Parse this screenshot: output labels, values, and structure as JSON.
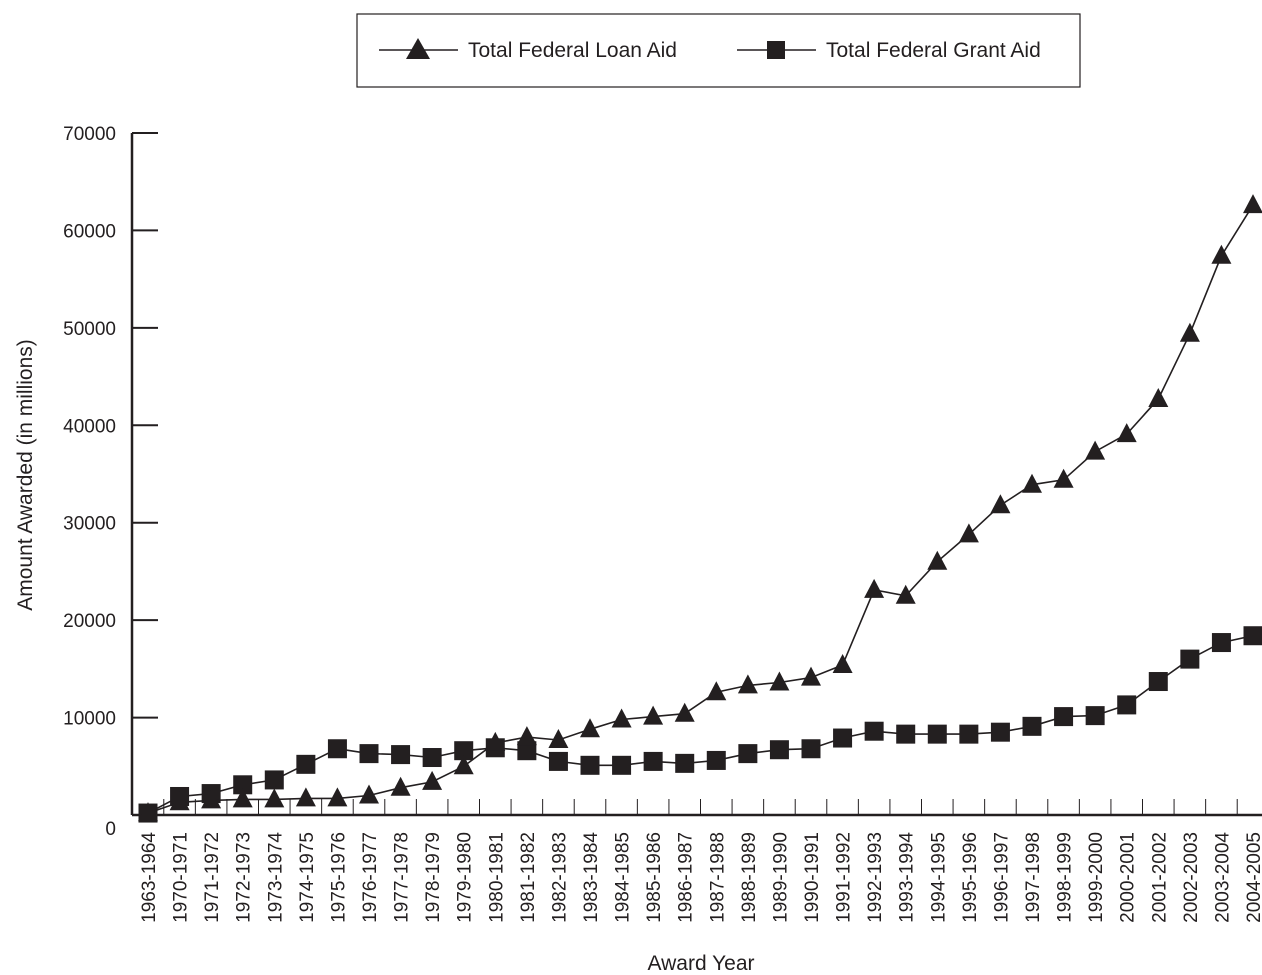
{
  "chart_data": {
    "type": "line",
    "title": "",
    "xlabel": "Award Year",
    "ylabel": "Amount Awarded (in millions)",
    "ylim": [
      0,
      70000
    ],
    "yticks": [
      "0",
      "10000",
      "20000",
      "30000",
      "40000",
      "50000",
      "60000",
      "70000"
    ],
    "grid": false,
    "legend_position": "top-center",
    "categories": [
      "1963-1964",
      "1970-1971",
      "1971-1972",
      "1972-1973",
      "1973-1974",
      "1974-1975",
      "1975-1976",
      "1976-1977",
      "1977-1978",
      "1978-1979",
      "1979-1980",
      "1980-1981",
      "1981-1982",
      "1982-1983",
      "1983-1984",
      "1984-1985",
      "1985-1986",
      "1986-1987",
      "1987-1988",
      "1988-1989",
      "1989-1990",
      "1990-1991",
      "1991-1992",
      "1992-1993",
      "1993-1994",
      "1994-1995",
      "1995-1996",
      "1996-1997",
      "1997-1998",
      "1998-1999",
      "1999-2000",
      "2000-2001",
      "2001-2002",
      "2002-2003",
      "2003-2004",
      "2004-2005"
    ],
    "series": [
      {
        "name": "Total Federal Loan Aid",
        "marker": "triangle",
        "values": [
          200,
          1300,
          1500,
          1600,
          1600,
          1700,
          1700,
          2000,
          2800,
          3400,
          5000,
          7400,
          8000,
          7700,
          8800,
          9800,
          10100,
          10400,
          12600,
          13300,
          13600,
          14100,
          15400,
          23100,
          22500,
          26000,
          28800,
          31800,
          33900,
          34400,
          37300,
          39100,
          42700,
          49400,
          57400,
          62600
        ]
      },
      {
        "name": "Total Federal Grant Aid",
        "marker": "square",
        "values": [
          200,
          1900,
          2200,
          3100,
          3600,
          5200,
          6800,
          6300,
          6200,
          5900,
          6600,
          6900,
          6600,
          5500,
          5100,
          5100,
          5500,
          5300,
          5600,
          6300,
          6700,
          6800,
          7900,
          8600,
          8300,
          8300,
          8300,
          8500,
          9100,
          10100,
          10200,
          11300,
          13700,
          16000,
          17700,
          18400
        ]
      }
    ]
  }
}
